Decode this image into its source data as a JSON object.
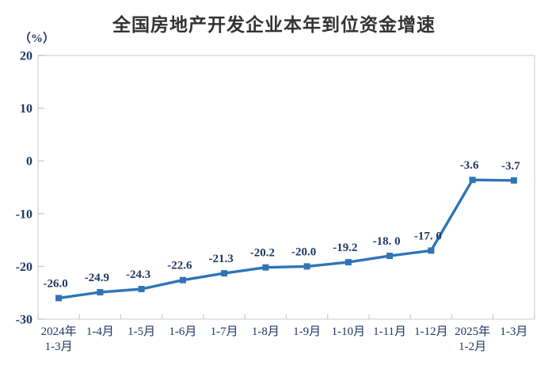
{
  "chart_data": {
    "type": "line",
    "title": "全国房地产开发企业本年到位资金增速",
    "ylabel": "（%）",
    "xlabel": "",
    "categories": [
      "2024年\n1-3月",
      "1-4月",
      "1-5月",
      "1-6月",
      "1-7月",
      "1-8月",
      "1-9月",
      "1-10月",
      "1-11月",
      "1-12月",
      "2025年\n1-2月",
      "1-3月"
    ],
    "values": [
      -26.0,
      -24.9,
      -24.3,
      -22.6,
      -21.3,
      -20.2,
      -20.0,
      -19.2,
      -18.0,
      -17.0,
      -3.6,
      -3.7
    ],
    "value_labels": [
      "-26.0",
      "-24.9",
      "-24.3",
      "-22.6",
      "-21.3",
      "-20.2",
      "-20.0",
      "-19.2",
      "-18. 0",
      "-17. 0",
      "-3.6",
      "-3.7"
    ],
    "ylim": [
      -30,
      20
    ],
    "yticks": [
      20,
      10,
      0,
      -10,
      -20,
      -30
    ],
    "grid": false,
    "legend": null,
    "line_color": "#2E75B6",
    "marker": "square",
    "text_color": "#1F3864",
    "axis_color": "#C9C9C9",
    "border_color": "#D9D9D9"
  }
}
